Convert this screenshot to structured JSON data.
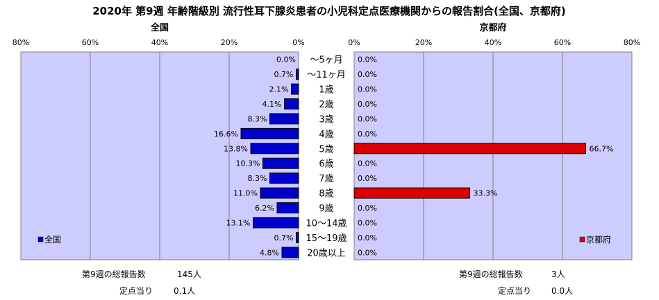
{
  "title": "2020年 第9週 年齢階級別 流行性耳下腺炎患者の小児科定点医療機関からの報告割合(全国、京都府)",
  "colors": {
    "plot_bg": "#ccccff",
    "national_bar": "#0000cc",
    "kyoto_bar": "#dd0000",
    "grid": "#808080"
  },
  "chart_data": [
    {
      "type": "bar",
      "orientation": "horizontal",
      "title": "全国",
      "categories": [
        "〜5ヶ月",
        "〜11ヶ月",
        "1歳",
        "2歳",
        "3歳",
        "4歳",
        "5歳",
        "6歳",
        "7歳",
        "8歳",
        "9歳",
        "10〜14歳",
        "15〜19歳",
        "20歳以上"
      ],
      "series": [
        {
          "name": "全国",
          "values": [
            0.0,
            0.7,
            2.1,
            4.1,
            8.3,
            16.6,
            13.8,
            10.3,
            8.3,
            11.0,
            6.2,
            13.1,
            0.7,
            4.8
          ],
          "labels": [
            "0.0%",
            "0.7%",
            "2.1%",
            "4.1%",
            "8.3%",
            "16.6%",
            "13.8%",
            "10.3%",
            "8.3%",
            "11.0%",
            "6.2%",
            "13.1%",
            "0.7%",
            "4.8%"
          ]
        }
      ],
      "xlim": [
        0,
        80
      ],
      "x_direction": "reversed",
      "xticks": [
        "80%",
        "60%",
        "40%",
        "20%",
        "0%"
      ],
      "legend": "bottom-left",
      "grid": true
    },
    {
      "type": "bar",
      "orientation": "horizontal",
      "title": "京都府",
      "categories": [
        "〜5ヶ月",
        "〜11ヶ月",
        "1歳",
        "2歳",
        "3歳",
        "4歳",
        "5歳",
        "6歳",
        "7歳",
        "8歳",
        "9歳",
        "10〜14歳",
        "15〜19歳",
        "20歳以上"
      ],
      "series": [
        {
          "name": "京都府",
          "values": [
            0.0,
            0.0,
            0.0,
            0.0,
            0.0,
            0.0,
            66.7,
            0.0,
            0.0,
            33.3,
            0.0,
            0.0,
            0.0,
            0.0
          ],
          "labels": [
            "0.0%",
            "0.0%",
            "0.0%",
            "0.0%",
            "0.0%",
            "0.0%",
            "66.7%",
            "0.0%",
            "0.0%",
            "33.3%",
            "0.0%",
            "0.0%",
            "0.0%",
            "0.0%"
          ]
        }
      ],
      "xlim": [
        0,
        80
      ],
      "xticks": [
        "0%",
        "20%",
        "40%",
        "60%",
        "80%"
      ],
      "legend": "bottom-right",
      "grid": true
    }
  ],
  "stats": {
    "national": {
      "total_label": "第9週の総報告数",
      "total_value": "145人",
      "per_label": "定点当り",
      "per_value": "0.1人"
    },
    "kyoto": {
      "total_label": "第9週の総報告数",
      "total_value": "3人",
      "per_label": "定点当り",
      "per_value": "0.0人"
    }
  }
}
